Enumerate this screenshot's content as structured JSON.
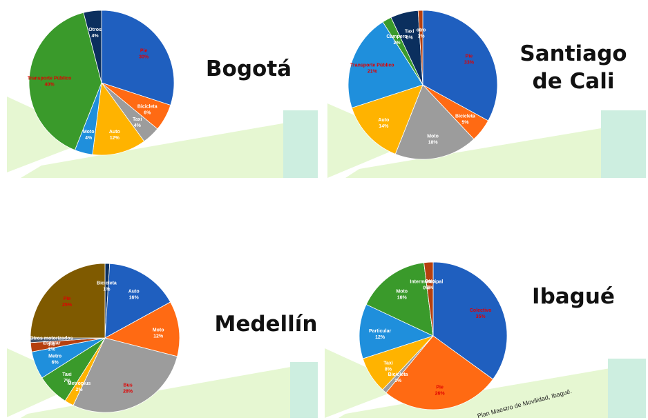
{
  "chart_data": [
    {
      "type": "pie",
      "title": "Bogotá",
      "categories": [
        "Pie",
        "Bicicleta",
        "Taxi",
        "Auto",
        "Moto",
        "Transporte Público",
        "Otros"
      ],
      "values": [
        30,
        6,
        4,
        12,
        4,
        40,
        4
      ],
      "value_labels": [
        "30%",
        "6%",
        "4%",
        "12%",
        "4%",
        "40%",
        "4%"
      ],
      "colors": [
        "#1f5fbf",
        "#ff6a13",
        "#9c9c9c",
        "#ffb300",
        "#1f8fdc",
        "#3a9a2b",
        "#0b2f5e"
      ],
      "label_colors": [
        "#e00000",
        "#ffffff",
        "#ffffff",
        "#ffffff",
        "#ffffff",
        "#e00000",
        "#ffffff"
      ]
    },
    {
      "type": "pie",
      "title": "Santiago de Cali",
      "categories": [
        "Pie",
        "Bicicleta",
        "Moto",
        "Auto",
        "Transporte Público",
        "Campero",
        "Taxi",
        "otro"
      ],
      "values": [
        33,
        5,
        18,
        14,
        21,
        2,
        6,
        1
      ],
      "value_labels": [
        "33%",
        "5%",
        "18%",
        "14%",
        "21%",
        "2%",
        "6%",
        "1%"
      ],
      "colors": [
        "#1f5fbf",
        "#ff6a13",
        "#9c9c9c",
        "#ffb300",
        "#1f8fdc",
        "#3a9a2b",
        "#0b2f5e",
        "#b5400f"
      ],
      "label_colors": [
        "#e00000",
        "#ffffff",
        "#ffffff",
        "#ffffff",
        "#e00000",
        "#ffffff",
        "#ffffff",
        "#ffffff"
      ]
    },
    {
      "type": "pie",
      "title": "Medellín",
      "categories": [
        "Bicicleta",
        "Auto",
        "Moto",
        "Bus",
        "Metroplus",
        "Taxi",
        "Metro",
        "Escolar",
        "Otros motorizados",
        "Pie"
      ],
      "values": [
        1,
        16,
        12,
        28,
        2,
        7,
        6,
        2,
        1,
        25
      ],
      "value_labels": [
        "1%",
        "16%",
        "12%",
        "28%",
        "2%",
        "7%",
        "6%",
        "2%",
        "1%",
        "25%"
      ],
      "colors": [
        "#0b2f5e",
        "#1f5fbf",
        "#ff6a13",
        "#9c9c9c",
        "#ffb300",
        "#3a9a2b",
        "#1f8fdc",
        "#b5400f",
        "#44546a",
        "#7f5a00"
      ],
      "label_colors": [
        "#ffffff",
        "#ffffff",
        "#ffffff",
        "#e00000",
        "#ffffff",
        "#ffffff",
        "#ffffff",
        "#ffffff",
        "#ffffff",
        "#e00000"
      ]
    },
    {
      "type": "pie",
      "title": "Ibagué",
      "categories": [
        "Colectivo",
        "Pie",
        "Bicicleta",
        "Taxi",
        "Particular",
        "Moto",
        "Intermunicipal",
        "Otro"
      ],
      "values": [
        35,
        26,
        1,
        8,
        12,
        16,
        0,
        2
      ],
      "value_labels": [
        "35%",
        "26%",
        "1%",
        "8%",
        "12%",
        "16%",
        "0%",
        "2%"
      ],
      "colors": [
        "#1f5fbf",
        "#ff6a13",
        "#9c9c9c",
        "#ffb300",
        "#1f8fdc",
        "#3a9a2b",
        "#0b2f5e",
        "#b5400f"
      ],
      "label_colors": [
        "#e00000",
        "#e00000",
        "#ffffff",
        "#ffffff",
        "#ffffff",
        "#ffffff",
        "#ffffff",
        "#ffffff"
      ],
      "annotation": "Plan Maestro de Movilidad, Ibagué."
    }
  ]
}
